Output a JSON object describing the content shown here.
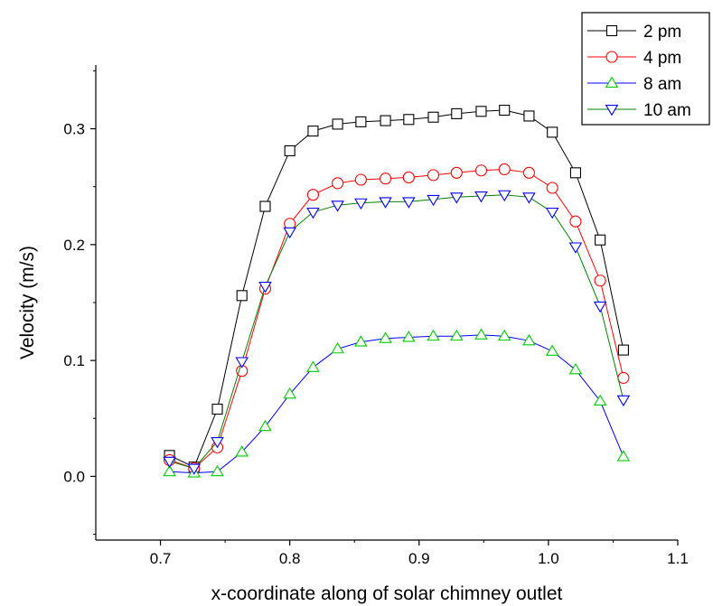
{
  "chart_data": {
    "type": "line",
    "xlabel": "x-coordinate along of solar chimney outlet",
    "ylabel": "Velocity (m/s)",
    "xlim": [
      0.65,
      1.1
    ],
    "ylim": [
      -0.055,
      0.355
    ],
    "xticks": [
      0.7,
      0.8,
      0.9,
      1.0,
      1.1
    ],
    "xtick_labels": [
      "0.7",
      "0.8",
      "0.9",
      "1.0",
      "1.1"
    ],
    "yticks": [
      0.0,
      0.1,
      0.2,
      0.3
    ],
    "ytick_labels": [
      "0.0",
      "0.1",
      "0.2",
      "0.3"
    ],
    "grid": false,
    "legend_position": "top-right",
    "x": [
      0.707,
      0.726,
      0.744,
      0.763,
      0.781,
      0.8,
      0.818,
      0.837,
      0.855,
      0.874,
      0.892,
      0.911,
      0.929,
      0.948,
      0.966,
      0.985,
      1.003,
      1.021,
      1.04,
      1.058
    ],
    "series": [
      {
        "name": "2 pm",
        "marker": "square",
        "color": "#000000",
        "values": [
          0.018,
          0.008,
          0.058,
          0.156,
          0.233,
          0.281,
          0.298,
          0.304,
          0.306,
          0.307,
          0.308,
          0.31,
          0.313,
          0.315,
          0.316,
          0.311,
          0.297,
          0.262,
          0.204,
          0.109
        ]
      },
      {
        "name": "4 pm",
        "marker": "circle",
        "color": "#ff0000",
        "values": [
          0.014,
          0.007,
          0.025,
          0.091,
          0.162,
          0.218,
          0.243,
          0.253,
          0.256,
          0.257,
          0.258,
          0.26,
          0.262,
          0.264,
          0.265,
          0.262,
          0.249,
          0.22,
          0.169,
          0.085
        ]
      },
      {
        "name": "8 am",
        "marker": "triangle-up",
        "color": "#00cc00",
        "line_color": "#0000ff",
        "values": [
          0.004,
          0.003,
          0.004,
          0.021,
          0.043,
          0.071,
          0.094,
          0.11,
          0.116,
          0.119,
          0.12,
          0.121,
          0.121,
          0.122,
          0.121,
          0.117,
          0.108,
          0.092,
          0.065,
          0.017
        ]
      },
      {
        "name": "10 am",
        "marker": "triangle-down",
        "color": "#0000ff",
        "line_color": "#008000",
        "values": [
          0.013,
          0.007,
          0.03,
          0.099,
          0.164,
          0.211,
          0.228,
          0.234,
          0.236,
          0.237,
          0.237,
          0.239,
          0.241,
          0.242,
          0.243,
          0.241,
          0.228,
          0.198,
          0.147,
          0.066
        ]
      }
    ]
  }
}
